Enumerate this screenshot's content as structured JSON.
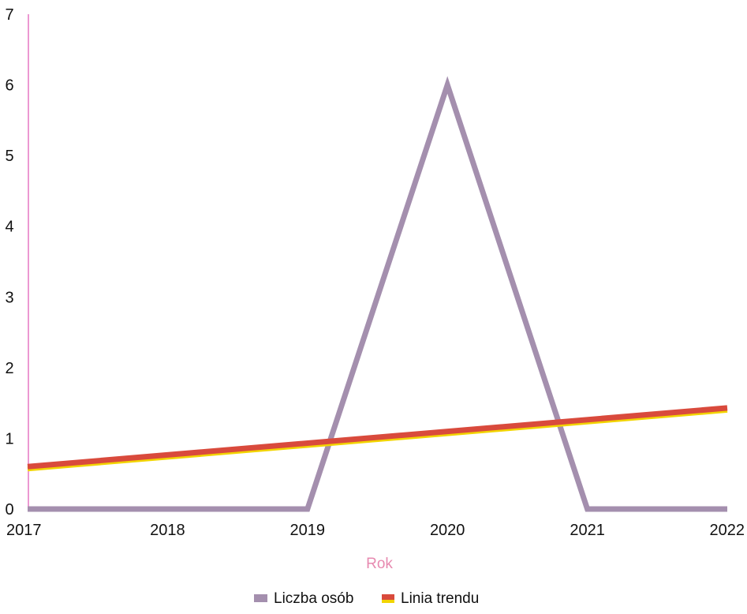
{
  "chart_data": {
    "type": "line",
    "x": [
      2017,
      2018,
      2019,
      2020,
      2021,
      2022
    ],
    "series": [
      {
        "name": "Liczba osób",
        "x": [
          2017,
          2018,
          2019,
          2020,
          2021,
          2022
        ],
        "values": [
          0,
          0,
          0,
          6,
          0,
          0
        ],
        "color": "#a48fae",
        "kind": "polyline"
      },
      {
        "name": "Linia trendu",
        "x": [
          2017,
          2022
        ],
        "values": [
          0.6,
          1.43
        ],
        "color": "#d94a3c",
        "underline_color": "#f2d400",
        "kind": "trend"
      }
    ],
    "xlabel": "Rok",
    "ylabel": "",
    "title": "",
    "xlim": [
      2017,
      2022
    ],
    "ylim": [
      0,
      7
    ],
    "x_ticks": [
      "2017",
      "2018",
      "2019",
      "2020",
      "2021",
      "2022"
    ],
    "y_ticks": [
      "0",
      "1",
      "2",
      "3",
      "4",
      "5",
      "6",
      "7"
    ],
    "grid": false,
    "legend_position": "bottom-center",
    "axis_color": "#e055b4"
  }
}
